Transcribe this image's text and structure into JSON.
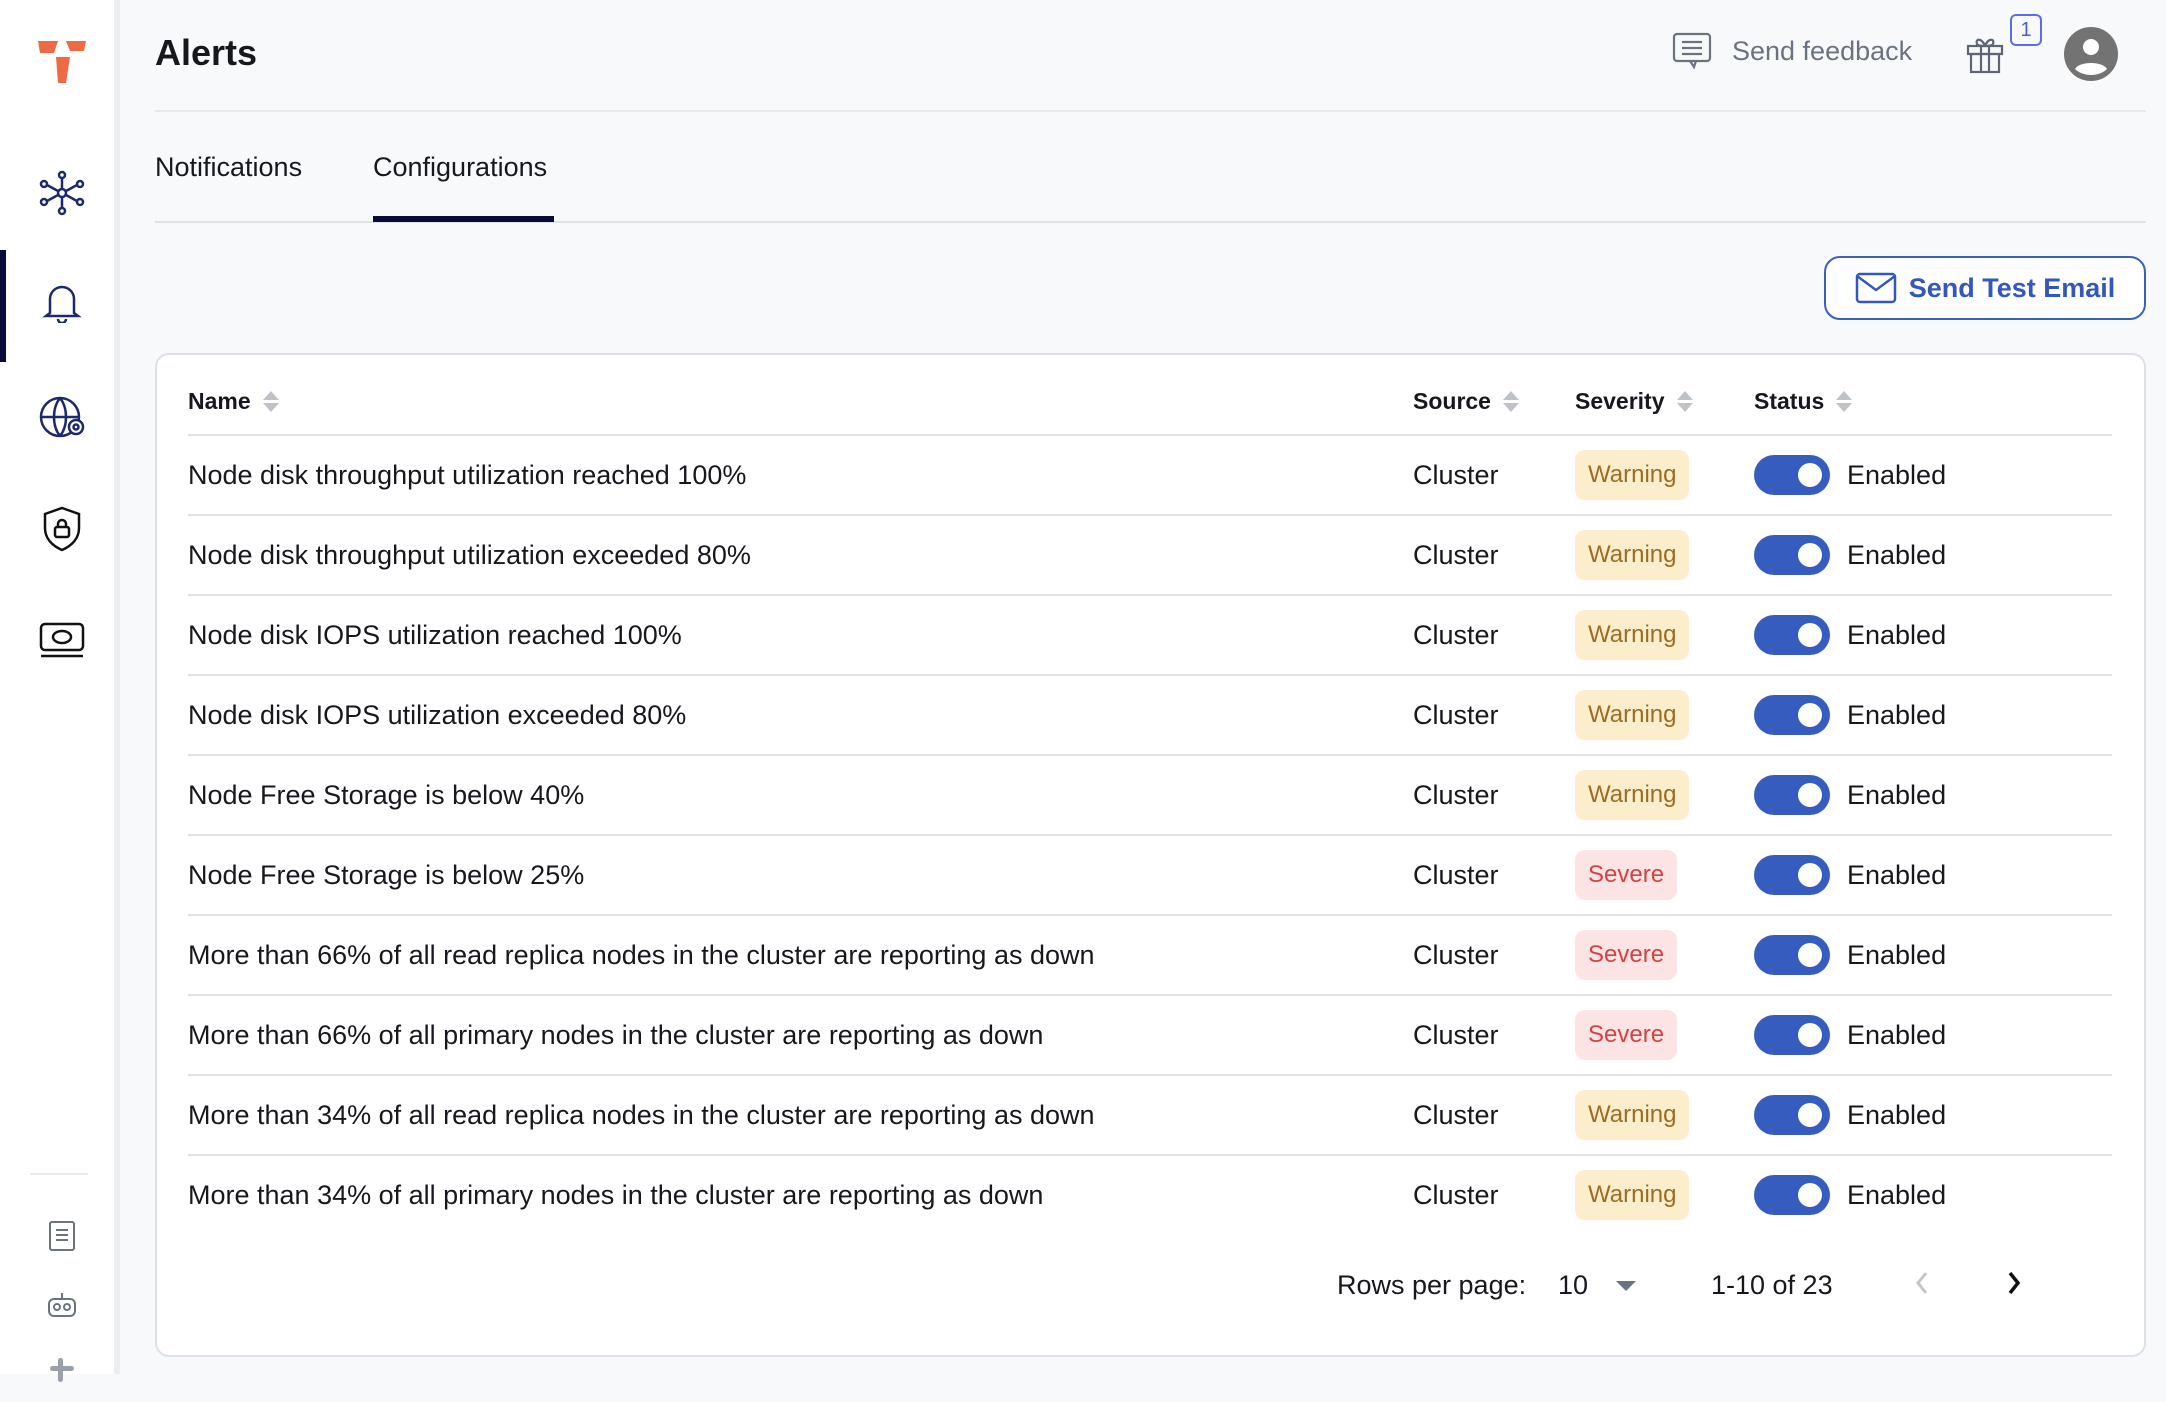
{
  "header": {
    "title": "Alerts",
    "feedback_label": "Send feedback",
    "gift_count": "1"
  },
  "tabs": [
    {
      "label": "Notifications",
      "active": false
    },
    {
      "label": "Configurations",
      "active": true
    }
  ],
  "actions": {
    "send_test_email": "Send Test Email"
  },
  "table": {
    "columns": [
      "Name",
      "Source",
      "Severity",
      "Status"
    ],
    "rows": [
      {
        "name": "Node disk throughput utilization reached 100%",
        "source": "Cluster",
        "severity": "Warning",
        "status": "Enabled"
      },
      {
        "name": "Node disk throughput utilization exceeded 80%",
        "source": "Cluster",
        "severity": "Warning",
        "status": "Enabled"
      },
      {
        "name": "Node disk IOPS utilization reached 100%",
        "source": "Cluster",
        "severity": "Warning",
        "status": "Enabled"
      },
      {
        "name": "Node disk IOPS utilization exceeded 80%",
        "source": "Cluster",
        "severity": "Warning",
        "status": "Enabled"
      },
      {
        "name": "Node Free Storage is below 40%",
        "source": "Cluster",
        "severity": "Warning",
        "status": "Enabled"
      },
      {
        "name": "Node Free Storage is below 25%",
        "source": "Cluster",
        "severity": "Severe",
        "status": "Enabled"
      },
      {
        "name": "More than 66% of all read replica nodes in the cluster are reporting as down",
        "source": "Cluster",
        "severity": "Severe",
        "status": "Enabled"
      },
      {
        "name": "More than 66% of all primary nodes in the cluster are reporting as down",
        "source": "Cluster",
        "severity": "Severe",
        "status": "Enabled"
      },
      {
        "name": "More than 34% of all read replica nodes in the cluster are reporting as down",
        "source": "Cluster",
        "severity": "Warning",
        "status": "Enabled"
      },
      {
        "name": "More than 34% of all primary nodes in the cluster are reporting as down",
        "source": "Cluster",
        "severity": "Warning",
        "status": "Enabled"
      }
    ]
  },
  "pagination": {
    "rows_per_page_label": "Rows per page:",
    "rows_per_page": "10",
    "range": "1-10 of 23"
  },
  "colors": {
    "accent": "#365cbf",
    "warning_bg": "#fcedcc",
    "warning_text": "#9a6d22",
    "severe_bg": "#fde4e4",
    "severe_text": "#d14343",
    "brand": "#ee6a45"
  },
  "sidebar": {
    "icons": [
      "logo",
      "cluster-icon",
      "bell-icon",
      "globe-gear-icon",
      "shield-lock-icon",
      "money-icon",
      "docs-icon",
      "bot-icon",
      "slack-icon"
    ],
    "active": "bell-icon"
  }
}
